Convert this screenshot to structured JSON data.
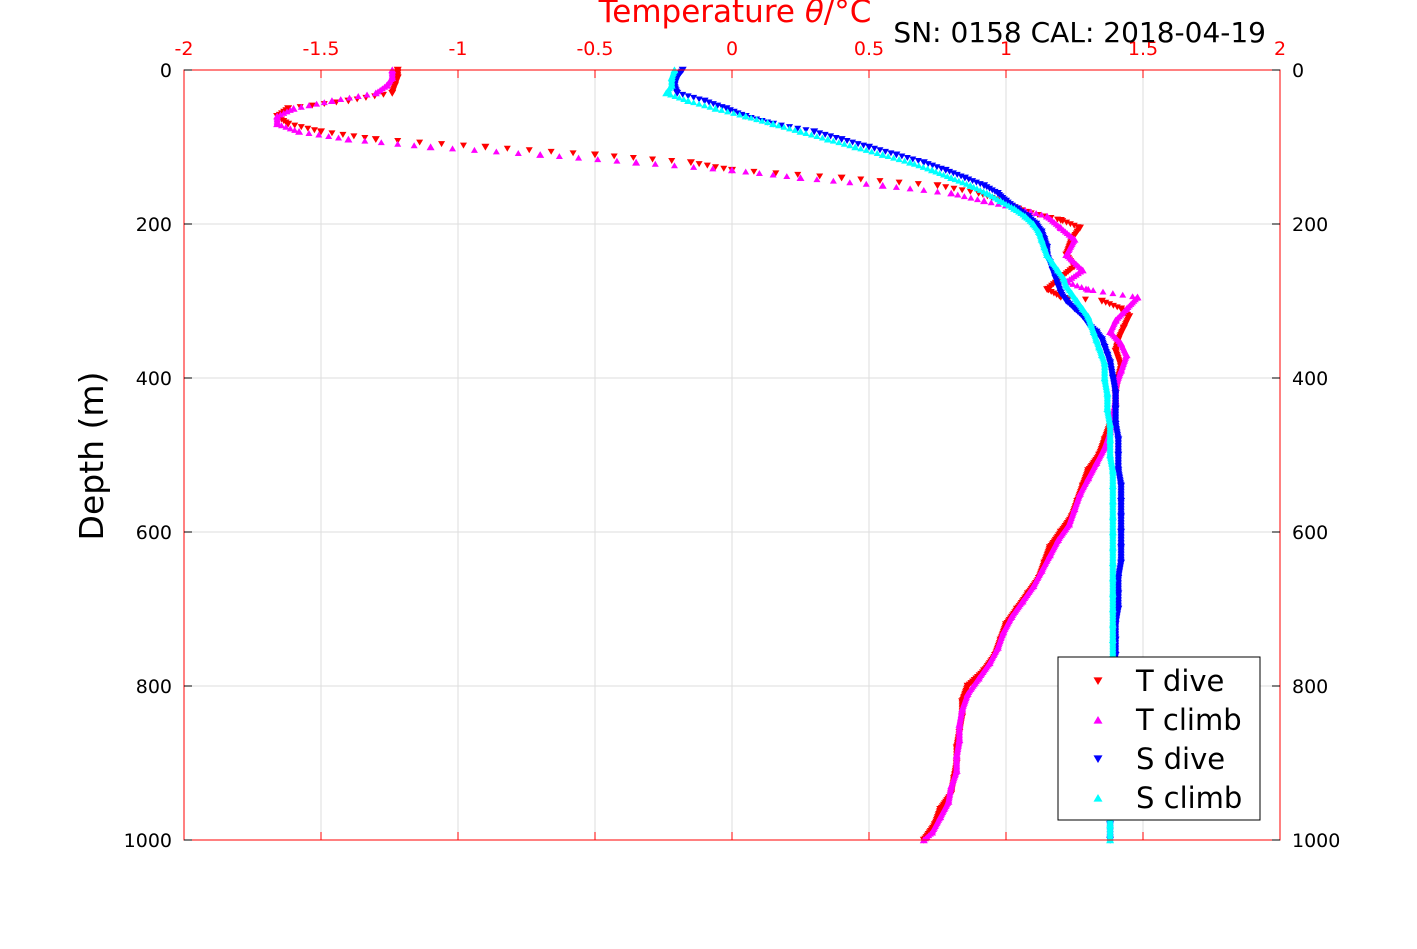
{
  "header": {
    "title_prefix": "Temperature ",
    "title_theta": "θ",
    "title_suffix": "/°C",
    "sn_cal": "SN: 0158  CAL: 2018-04-19"
  },
  "colors": {
    "temp_axis": "#ff0000",
    "t_dive": "#ff0000",
    "t_climb": "#ff00ff",
    "s_dive": "#0000ff",
    "s_climb": "#00ffff",
    "grid": "#dddddd",
    "text": "#000000"
  },
  "chart_data": {
    "type": "scatter",
    "title": "Temperature θ/°C",
    "xlabel": "Temperature θ/°C",
    "ylabel": "Depth (m)",
    "xlim": [
      -2,
      2
    ],
    "ylim": [
      0,
      1000
    ],
    "y_reversed": true,
    "x_ticks": [
      "-2",
      "-1.5",
      "-1",
      "-0.5",
      "0",
      "0.5",
      "1",
      "1.5",
      "2"
    ],
    "y_ticks": [
      "0",
      "200",
      "400",
      "600",
      "800",
      "1000"
    ],
    "grid": true,
    "legend_position": "bottom-right",
    "series": [
      {
        "name": "T dive",
        "marker": "triangle-down",
        "color": "#ff0000",
        "points": [
          [
            -1.22,
            0
          ],
          [
            -1.22,
            10
          ],
          [
            -1.23,
            20
          ],
          [
            -1.24,
            30
          ],
          [
            -1.4,
            40
          ],
          [
            -1.62,
            50
          ],
          [
            -1.66,
            60
          ],
          [
            -1.62,
            70
          ],
          [
            -1.5,
            80
          ],
          [
            -1.3,
            90
          ],
          [
            -0.9,
            100
          ],
          [
            -0.5,
            110
          ],
          [
            -0.15,
            120
          ],
          [
            0.0,
            130
          ],
          [
            0.4,
            140
          ],
          [
            0.75,
            150
          ],
          [
            0.9,
            160
          ],
          [
            0.98,
            170
          ],
          [
            1.08,
            185
          ],
          [
            1.2,
            195
          ],
          [
            1.27,
            205
          ],
          [
            1.24,
            220
          ],
          [
            1.22,
            240
          ],
          [
            1.25,
            255
          ],
          [
            1.2,
            270
          ],
          [
            1.15,
            285
          ],
          [
            1.2,
            295
          ],
          [
            1.35,
            300
          ],
          [
            1.42,
            310
          ],
          [
            1.45,
            320
          ],
          [
            1.43,
            335
          ],
          [
            1.41,
            350
          ],
          [
            1.4,
            365
          ],
          [
            1.42,
            385
          ],
          [
            1.41,
            400
          ],
          [
            1.4,
            420
          ],
          [
            1.4,
            440
          ],
          [
            1.38,
            460
          ],
          [
            1.36,
            480
          ],
          [
            1.34,
            500
          ],
          [
            1.3,
            520
          ],
          [
            1.28,
            540
          ],
          [
            1.26,
            560
          ],
          [
            1.24,
            580
          ],
          [
            1.2,
            600
          ],
          [
            1.16,
            620
          ],
          [
            1.14,
            640
          ],
          [
            1.12,
            660
          ],
          [
            1.08,
            680
          ],
          [
            1.04,
            700
          ],
          [
            1.0,
            720
          ],
          [
            0.98,
            740
          ],
          [
            0.96,
            760
          ],
          [
            0.92,
            780
          ],
          [
            0.86,
            800
          ],
          [
            0.84,
            820
          ],
          [
            0.84,
            840
          ],
          [
            0.83,
            860
          ],
          [
            0.82,
            880
          ],
          [
            0.82,
            900
          ],
          [
            0.81,
            920
          ],
          [
            0.8,
            940
          ],
          [
            0.76,
            960
          ],
          [
            0.74,
            980
          ],
          [
            0.7,
            1000
          ]
        ]
      },
      {
        "name": "T climb",
        "marker": "triangle-up",
        "color": "#ff00ff",
        "points": [
          [
            -1.24,
            0
          ],
          [
            -1.24,
            10
          ],
          [
            -1.26,
            20
          ],
          [
            -1.3,
            30
          ],
          [
            -1.46,
            40
          ],
          [
            -1.6,
            50
          ],
          [
            -1.66,
            60
          ],
          [
            -1.66,
            70
          ],
          [
            -1.58,
            80
          ],
          [
            -1.4,
            90
          ],
          [
            -1.1,
            100
          ],
          [
            -0.7,
            110
          ],
          [
            -0.35,
            120
          ],
          [
            0.0,
            130
          ],
          [
            0.25,
            140
          ],
          [
            0.55,
            150
          ],
          [
            0.8,
            160
          ],
          [
            0.92,
            170
          ],
          [
            1.05,
            180
          ],
          [
            1.15,
            190
          ],
          [
            1.2,
            205
          ],
          [
            1.25,
            220
          ],
          [
            1.22,
            240
          ],
          [
            1.28,
            260
          ],
          [
            1.22,
            275
          ],
          [
            1.3,
            285
          ],
          [
            1.48,
            295
          ],
          [
            1.44,
            310
          ],
          [
            1.4,
            325
          ],
          [
            1.38,
            340
          ],
          [
            1.42,
            355
          ],
          [
            1.44,
            370
          ],
          [
            1.42,
            390
          ],
          [
            1.4,
            410
          ],
          [
            1.4,
            430
          ],
          [
            1.39,
            450
          ],
          [
            1.38,
            470
          ],
          [
            1.36,
            490
          ],
          [
            1.33,
            510
          ],
          [
            1.3,
            530
          ],
          [
            1.27,
            550
          ],
          [
            1.25,
            570
          ],
          [
            1.23,
            590
          ],
          [
            1.19,
            610
          ],
          [
            1.16,
            630
          ],
          [
            1.13,
            650
          ],
          [
            1.1,
            670
          ],
          [
            1.06,
            690
          ],
          [
            1.02,
            710
          ],
          [
            0.99,
            730
          ],
          [
            0.97,
            750
          ],
          [
            0.94,
            770
          ],
          [
            0.9,
            790
          ],
          [
            0.86,
            810
          ],
          [
            0.84,
            830
          ],
          [
            0.83,
            850
          ],
          [
            0.83,
            870
          ],
          [
            0.82,
            890
          ],
          [
            0.82,
            910
          ],
          [
            0.8,
            930
          ],
          [
            0.79,
            950
          ],
          [
            0.76,
            970
          ],
          [
            0.73,
            990
          ],
          [
            0.7,
            1000
          ]
        ]
      },
      {
        "name": "S dive",
        "marker": "triangle-down",
        "color": "#0000ff",
        "points": [
          [
            -0.18,
            0
          ],
          [
            -0.2,
            10
          ],
          [
            -0.21,
            20
          ],
          [
            -0.2,
            30
          ],
          [
            -0.1,
            40
          ],
          [
            -0.02,
            50
          ],
          [
            0.05,
            60
          ],
          [
            0.15,
            70
          ],
          [
            0.3,
            80
          ],
          [
            0.4,
            90
          ],
          [
            0.5,
            100
          ],
          [
            0.6,
            110
          ],
          [
            0.7,
            120
          ],
          [
            0.78,
            130
          ],
          [
            0.85,
            140
          ],
          [
            0.92,
            150
          ],
          [
            0.97,
            160
          ],
          [
            1.0,
            170
          ],
          [
            1.04,
            180
          ],
          [
            1.08,
            190
          ],
          [
            1.11,
            200
          ],
          [
            1.13,
            210
          ],
          [
            1.14,
            220
          ],
          [
            1.15,
            230
          ],
          [
            1.15,
            240
          ],
          [
            1.16,
            250
          ],
          [
            1.17,
            260
          ],
          [
            1.18,
            270
          ],
          [
            1.19,
            280
          ],
          [
            1.2,
            290
          ],
          [
            1.22,
            300
          ],
          [
            1.25,
            310
          ],
          [
            1.28,
            320
          ],
          [
            1.3,
            330
          ],
          [
            1.33,
            340
          ],
          [
            1.35,
            350
          ],
          [
            1.36,
            360
          ],
          [
            1.37,
            370
          ],
          [
            1.38,
            380
          ],
          [
            1.39,
            400
          ],
          [
            1.4,
            420
          ],
          [
            1.4,
            440
          ],
          [
            1.4,
            460
          ],
          [
            1.41,
            480
          ],
          [
            1.41,
            500
          ],
          [
            1.41,
            520
          ],
          [
            1.42,
            540
          ],
          [
            1.42,
            560
          ],
          [
            1.42,
            580
          ],
          [
            1.42,
            600
          ],
          [
            1.42,
            620
          ],
          [
            1.42,
            640
          ],
          [
            1.41,
            660
          ],
          [
            1.41,
            680
          ],
          [
            1.41,
            700
          ],
          [
            1.4,
            720
          ],
          [
            1.4,
            740
          ],
          [
            1.4,
            760
          ],
          [
            1.39,
            780
          ],
          [
            1.39,
            800
          ],
          [
            1.39,
            820
          ],
          [
            1.39,
            840
          ],
          [
            1.39,
            860
          ],
          [
            1.39,
            880
          ],
          [
            1.39,
            900
          ],
          [
            1.39,
            920
          ],
          [
            1.38,
            940
          ],
          [
            1.38,
            960
          ],
          [
            1.38,
            980
          ],
          [
            1.38,
            1000
          ]
        ]
      },
      {
        "name": "S climb",
        "marker": "triangle-up",
        "color": "#00ffff",
        "points": [
          [
            -0.21,
            0
          ],
          [
            -0.22,
            10
          ],
          [
            -0.22,
            20
          ],
          [
            -0.24,
            30
          ],
          [
            -0.16,
            40
          ],
          [
            -0.06,
            50
          ],
          [
            0.05,
            60
          ],
          [
            0.15,
            70
          ],
          [
            0.25,
            80
          ],
          [
            0.35,
            90
          ],
          [
            0.45,
            100
          ],
          [
            0.55,
            110
          ],
          [
            0.65,
            120
          ],
          [
            0.73,
            130
          ],
          [
            0.8,
            140
          ],
          [
            0.87,
            150
          ],
          [
            0.93,
            160
          ],
          [
            0.98,
            170
          ],
          [
            1.03,
            180
          ],
          [
            1.07,
            190
          ],
          [
            1.1,
            200
          ],
          [
            1.12,
            210
          ],
          [
            1.13,
            220
          ],
          [
            1.14,
            230
          ],
          [
            1.15,
            240
          ],
          [
            1.17,
            250
          ],
          [
            1.19,
            260
          ],
          [
            1.21,
            270
          ],
          [
            1.22,
            280
          ],
          [
            1.24,
            290
          ],
          [
            1.26,
            300
          ],
          [
            1.28,
            310
          ],
          [
            1.3,
            320
          ],
          [
            1.31,
            330
          ],
          [
            1.32,
            340
          ],
          [
            1.33,
            350
          ],
          [
            1.34,
            360
          ],
          [
            1.35,
            370
          ],
          [
            1.36,
            380
          ],
          [
            1.36,
            400
          ],
          [
            1.37,
            420
          ],
          [
            1.37,
            440
          ],
          [
            1.38,
            460
          ],
          [
            1.38,
            480
          ],
          [
            1.38,
            500
          ],
          [
            1.39,
            520
          ],
          [
            1.39,
            540
          ],
          [
            1.39,
            560
          ],
          [
            1.39,
            580
          ],
          [
            1.39,
            600
          ],
          [
            1.39,
            620
          ],
          [
            1.39,
            640
          ],
          [
            1.39,
            660
          ],
          [
            1.39,
            680
          ],
          [
            1.39,
            700
          ],
          [
            1.39,
            720
          ],
          [
            1.39,
            740
          ],
          [
            1.39,
            760
          ],
          [
            1.38,
            780
          ],
          [
            1.38,
            800
          ],
          [
            1.38,
            820
          ],
          [
            1.38,
            840
          ],
          [
            1.38,
            860
          ],
          [
            1.38,
            880
          ],
          [
            1.38,
            900
          ],
          [
            1.38,
            920
          ],
          [
            1.38,
            940
          ],
          [
            1.38,
            960
          ],
          [
            1.38,
            980
          ],
          [
            1.38,
            1000
          ]
        ]
      }
    ]
  }
}
